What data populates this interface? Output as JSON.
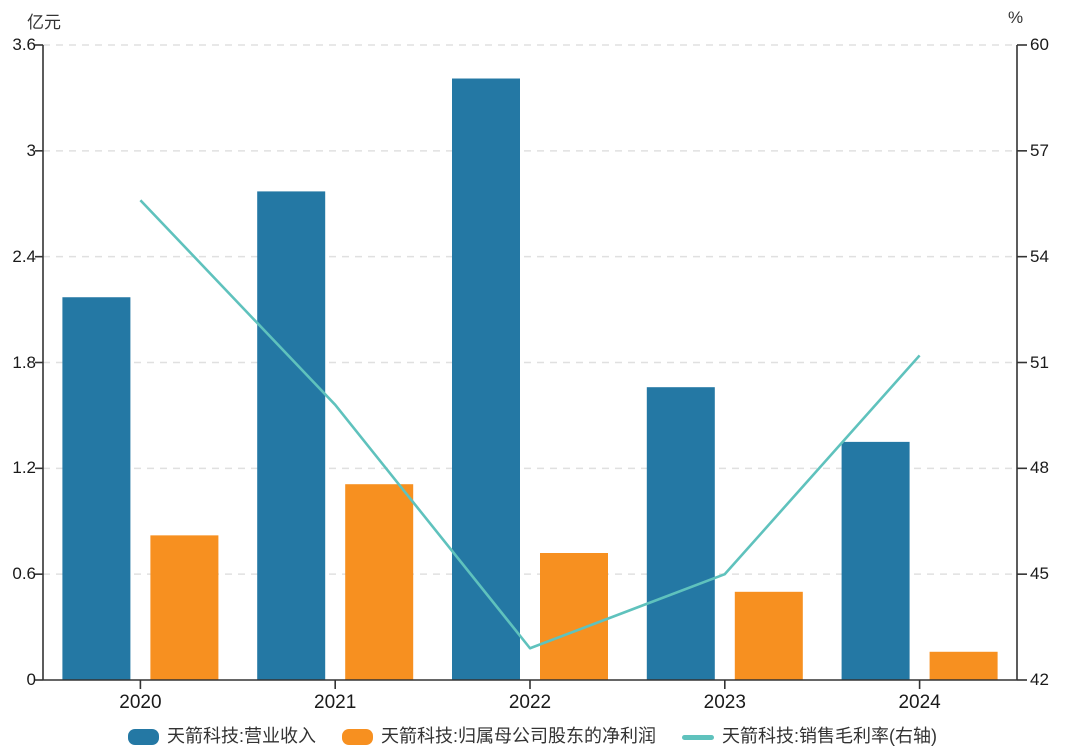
{
  "chart_data": {
    "type": "bar",
    "subtype": "grouped-bars-with-line",
    "title": "",
    "categories": [
      "2020",
      "2021",
      "2022",
      "2023",
      "2024"
    ],
    "series": [
      {
        "name": "天箭科技:营业收入",
        "type": "bar",
        "axis": "left",
        "color": "#2478A4",
        "values": [
          2.17,
          2.77,
          3.41,
          1.66,
          1.35
        ]
      },
      {
        "name": "天箭科技:归属母公司股东的净利润",
        "type": "bar",
        "axis": "left",
        "color": "#F79020",
        "values": [
          0.82,
          1.11,
          0.72,
          0.5,
          0.16
        ]
      },
      {
        "name": "天箭科技:销售毛利率(右轴)",
        "type": "line",
        "axis": "right",
        "color": "#5FC2BD",
        "values": [
          55.6,
          49.8,
          42.9,
          45.0,
          51.2
        ]
      }
    ],
    "left_axis": {
      "title": "亿元",
      "min": 0,
      "max": 3.6,
      "ticks": [
        3.6,
        3,
        2.4,
        1.8,
        1.2,
        0.6,
        0
      ]
    },
    "right_axis": {
      "title": "%",
      "min": 42,
      "max": 60,
      "ticks": [
        60,
        57,
        54,
        51,
        48,
        45,
        42
      ]
    },
    "grid": true,
    "gridline_style": "dashed",
    "legend_position": "bottom",
    "colors": {
      "axis_line": "#333333",
      "gridline": "#e0e0e0",
      "tick_text": "#1a1a1a",
      "legend_text": "#333333",
      "background": "#ffffff"
    }
  }
}
